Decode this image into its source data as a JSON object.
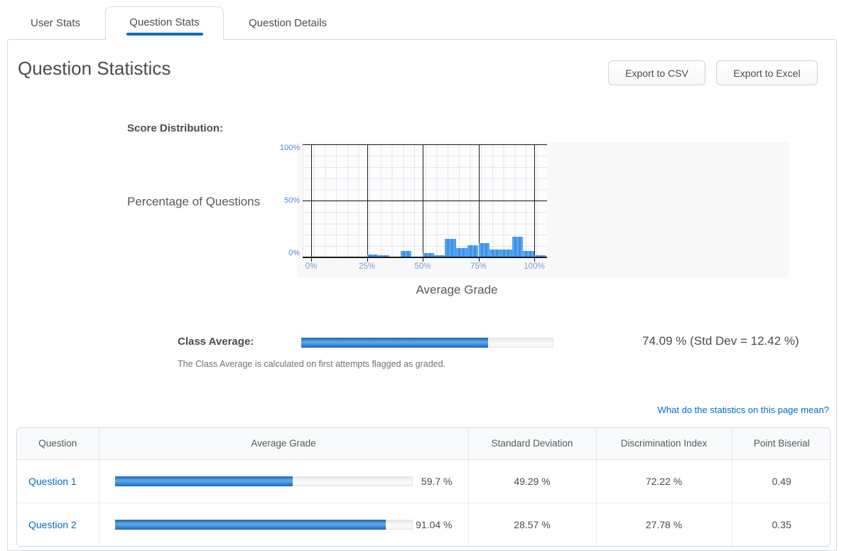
{
  "tabs": [
    {
      "label": "User Stats",
      "active": false
    },
    {
      "label": "Question Stats",
      "active": true
    },
    {
      "label": "Question Details",
      "active": false
    }
  ],
  "header": {
    "title": "Question Statistics",
    "export_csv_label": "Export to CSV",
    "export_excel_label": "Export to Excel"
  },
  "score_section": {
    "label": "Score Distribution:"
  },
  "chart_data": {
    "type": "bar",
    "title": "Score Distribution",
    "xlabel": "Average Grade",
    "ylabel": "Percentage of Questions",
    "x_tick_labels": [
      "0%",
      "25%",
      "50%",
      "75%",
      "100%"
    ],
    "y_tick_labels": [
      "100%",
      "50%",
      "0%"
    ],
    "xlim": [
      -4,
      105
    ],
    "ylim": [
      0,
      105
    ],
    "grid": true,
    "bin_width_percent": 5,
    "bins": [
      {
        "start": 25,
        "value": 2.0
      },
      {
        "start": 30,
        "value": 1.4
      },
      {
        "start": 40,
        "value": 5.2
      },
      {
        "start": 50,
        "value": 3.3
      },
      {
        "start": 55,
        "value": 1.1
      },
      {
        "start": 60,
        "value": 15.9
      },
      {
        "start": 65,
        "value": 7.8
      },
      {
        "start": 70,
        "value": 10.2
      },
      {
        "start": 75,
        "value": 12.4
      },
      {
        "start": 80,
        "value": 6.6
      },
      {
        "start": 85,
        "value": 6.6
      },
      {
        "start": 90,
        "value": 18.1
      },
      {
        "start": 95,
        "value": 5.2
      },
      {
        "start": 100,
        "value": 1.1
      }
    ]
  },
  "class_average": {
    "label": "Class Average:",
    "percent": 74.09,
    "value_display": "74.09 %  (Std Dev = 12.42 %)",
    "note": "The Class Average is calculated on first attempts flagged as graded."
  },
  "stats_link_label": "What do the statistics on this page mean?",
  "table": {
    "columns": [
      "Question",
      "Average Grade",
      "Standard Deviation",
      "Discrimination Index",
      "Point Biserial"
    ],
    "rows": [
      {
        "question": "Question 1",
        "average_grade_percent": 59.7,
        "average_grade_display": "59.7 %",
        "standard_deviation": "49.29 %",
        "discrimination_index": "72.22 %",
        "point_biserial": "0.49"
      },
      {
        "question": "Question 2",
        "average_grade_percent": 91.04,
        "average_grade_display": "91.04 %",
        "standard_deviation": "28.57 %",
        "discrimination_index": "27.78 %",
        "point_biserial": "0.35"
      }
    ]
  },
  "colors": {
    "accent_blue": "#006fbf",
    "link_blue": "#006fbf",
    "bar_blue": "#4499ef",
    "progress_dark_blue": "#1f64b0",
    "progress_light_blue": "#5ea8ee",
    "y_tick_label_blue": "#4c86d8",
    "x_tick_label_blue": "#7d9cc8",
    "panel_border": "#d6dade",
    "chart_panel_bg": "#f8f8f9",
    "text_dark": "#494c4e",
    "text_muted": "#6e7377"
  }
}
